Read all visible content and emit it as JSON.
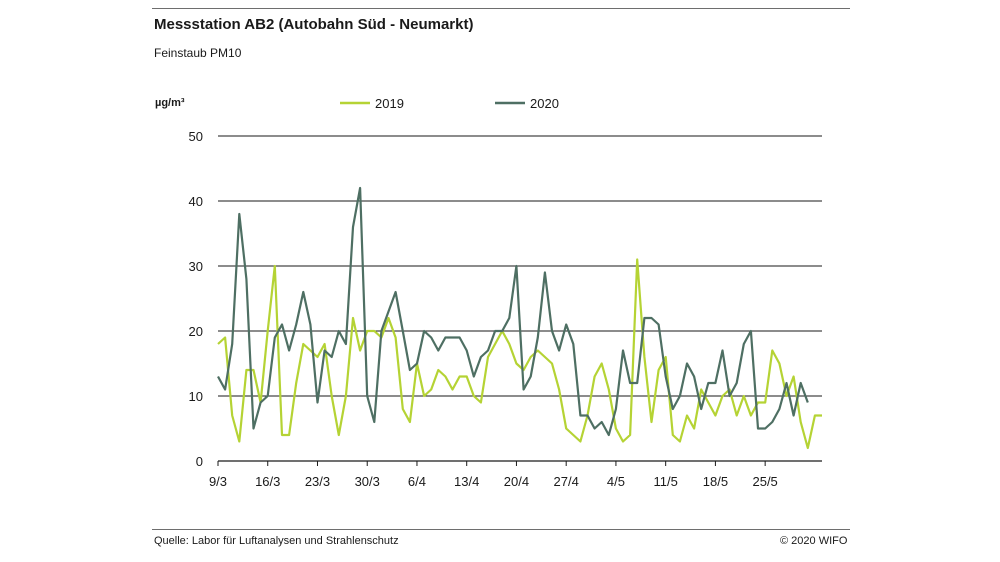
{
  "header": {
    "title": "Messstation  AB2 (Autobahn Süd - Neumarkt)",
    "subtitle": "Feinstaub PM10"
  },
  "footer": {
    "source": "Quelle: Labor für Luftanalysen und Strahlenschutz",
    "copyright": "© 2020 WIFO"
  },
  "chart_data": {
    "type": "line",
    "title": "Messstation  AB2 (Autobahn Süd - Neumarkt)",
    "subtitle": "Feinstaub PM10",
    "ylabel": "µg/m³",
    "xlabel": "",
    "ylim": [
      0,
      50
    ],
    "yticks": [
      0,
      10,
      20,
      30,
      40,
      50
    ],
    "grid": "horizontal",
    "legend_position": "top",
    "x_start": "9/3",
    "x_ticks": [
      {
        "label": "9/3",
        "day": 0
      },
      {
        "label": "16/3",
        "day": 7
      },
      {
        "label": "23/3",
        "day": 14
      },
      {
        "label": "30/3",
        "day": 21
      },
      {
        "label": "6/4",
        "day": 28
      },
      {
        "label": "13/4",
        "day": 35
      },
      {
        "label": "20/4",
        "day": 42
      },
      {
        "label": "27/4",
        "day": 49
      },
      {
        "label": "4/5",
        "day": 56
      },
      {
        "label": "11/5",
        "day": 63
      },
      {
        "label": "18/5",
        "day": 70
      },
      {
        "label": "25/5",
        "day": 77
      }
    ],
    "series": [
      {
        "name": "2019",
        "color": "#b5d334",
        "values": [
          18,
          19,
          7,
          3,
          14,
          14,
          9,
          20,
          30,
          4,
          4,
          12,
          18,
          17,
          16,
          18,
          10,
          4,
          10,
          22,
          17,
          20,
          20,
          19,
          22,
          19,
          8,
          6,
          15,
          10,
          11,
          14,
          13,
          11,
          13,
          13,
          10,
          9,
          16,
          18,
          20,
          18,
          15,
          14,
          16,
          17,
          16,
          15,
          11,
          5,
          4,
          3,
          7,
          13,
          15,
          11,
          5,
          3,
          4,
          31,
          16,
          6,
          14,
          16,
          4,
          3,
          7,
          5,
          11,
          9,
          7,
          10,
          11,
          7,
          10,
          7,
          9,
          9,
          17,
          15,
          10,
          13,
          6,
          2,
          7,
          7
        ]
      },
      {
        "name": "2020",
        "color": "#4e6f63",
        "values": [
          13,
          11,
          18,
          38,
          28,
          5,
          9,
          10,
          19,
          21,
          17,
          21,
          26,
          21,
          9,
          17,
          16,
          20,
          18,
          36,
          42,
          10,
          6,
          20,
          23,
          26,
          20,
          14,
          15,
          20,
          19,
          17,
          19,
          19,
          19,
          17,
          13,
          16,
          17,
          20,
          20,
          22,
          30,
          11,
          13,
          19,
          29,
          20,
          17,
          21,
          18,
          7,
          7,
          5,
          6,
          4,
          8,
          17,
          12,
          12,
          22,
          22,
          21,
          13,
          8,
          10,
          15,
          13,
          8,
          12,
          12,
          17,
          10,
          12,
          18,
          20,
          5,
          5,
          6,
          8,
          12,
          7,
          12,
          9
        ]
      }
    ]
  }
}
